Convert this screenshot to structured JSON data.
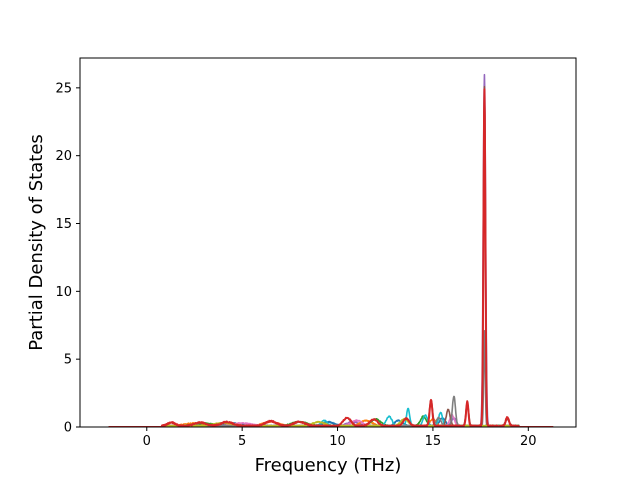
{
  "chart_data": {
    "type": "line",
    "title": "",
    "xlabel": "Frequency (THz)",
    "ylabel": "Partial Density of States",
    "xlim": [
      -3.5,
      22.5
    ],
    "ylim": [
      0,
      27.2
    ],
    "xticks": [
      0,
      5,
      10,
      15,
      20
    ],
    "yticks": [
      0,
      5,
      10,
      15,
      20,
      25
    ],
    "grid": false,
    "legend": "none",
    "series": [
      {
        "color": "#9467bd",
        "peaks": [
          [
            17.7,
            25.9,
            0.06
          ],
          [
            16.1,
            0.6,
            0.12
          ],
          [
            10.8,
            0.3,
            0.3
          ]
        ]
      },
      {
        "color": "#1f77b4",
        "peaks": [
          [
            4.5,
            0.2,
            0.5
          ],
          [
            9.5,
            0.3,
            0.3
          ],
          [
            13.2,
            0.4,
            0.2
          ],
          [
            15.5,
            0.6,
            0.15
          ]
        ]
      },
      {
        "color": "#ff7f0e",
        "peaks": [
          [
            2.5,
            0.2,
            0.5
          ],
          [
            6.5,
            0.3,
            0.4
          ],
          [
            11.5,
            0.4,
            0.3
          ],
          [
            15.0,
            0.5,
            0.15
          ]
        ]
      },
      {
        "color": "#2ca02c",
        "peaks": [
          [
            3.0,
            0.2,
            0.5
          ],
          [
            8.0,
            0.3,
            0.4
          ],
          [
            12.0,
            0.5,
            0.25
          ],
          [
            14.5,
            0.7,
            0.15
          ]
        ]
      },
      {
        "color": "#17becf",
        "peaks": [
          [
            9.3,
            0.4,
            0.15
          ],
          [
            12.7,
            0.7,
            0.15
          ],
          [
            13.7,
            1.3,
            0.08
          ],
          [
            14.6,
            0.8,
            0.12
          ],
          [
            15.4,
            1.0,
            0.1
          ]
        ]
      },
      {
        "color": "#e377c2",
        "peaks": [
          [
            5.0,
            0.2,
            0.5
          ],
          [
            11.0,
            0.4,
            0.3
          ],
          [
            16.0,
            0.8,
            0.12
          ]
        ]
      },
      {
        "color": "#8c564b",
        "peaks": [
          [
            14.9,
            1.9,
            0.08
          ],
          [
            15.8,
            1.2,
            0.1
          ],
          [
            16.8,
            1.7,
            0.07
          ],
          [
            17.7,
            25.0,
            0.05
          ],
          [
            18.9,
            0.5,
            0.1
          ]
        ]
      },
      {
        "color": "#7f7f7f",
        "peaks": [
          [
            16.1,
            2.2,
            0.08
          ],
          [
            15.3,
            0.6,
            0.12
          ],
          [
            17.7,
            7.0,
            0.04
          ]
        ]
      },
      {
        "color": "#bcbd22",
        "peaks": [
          [
            4.0,
            0.2,
            0.5
          ],
          [
            9.0,
            0.3,
            0.3
          ],
          [
            13.5,
            0.5,
            0.2
          ]
        ]
      },
      {
        "color": "#d62728",
        "peaks": [
          [
            1.3,
            0.25,
            0.2
          ],
          [
            2.8,
            0.25,
            0.3
          ],
          [
            4.2,
            0.3,
            0.3
          ],
          [
            6.5,
            0.35,
            0.3
          ],
          [
            8.0,
            0.3,
            0.3
          ],
          [
            10.5,
            0.6,
            0.2
          ],
          [
            11.9,
            0.5,
            0.2
          ],
          [
            13.6,
            0.55,
            0.15
          ],
          [
            14.9,
            1.9,
            0.07
          ],
          [
            16.8,
            1.8,
            0.06
          ],
          [
            17.7,
            24.8,
            0.05
          ],
          [
            18.9,
            0.65,
            0.08
          ]
        ]
      }
    ]
  }
}
